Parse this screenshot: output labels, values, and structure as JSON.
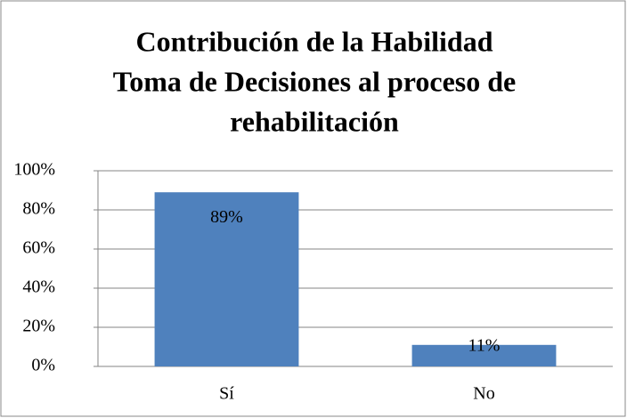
{
  "chart_data": {
    "type": "bar",
    "title": [
      "Contribución de la Habilidad",
      "Toma de Decisiones al proceso de",
      "rehabilitación"
    ],
    "categories": [
      "Sí",
      "No"
    ],
    "values": [
      89,
      11
    ],
    "value_labels": [
      "89%",
      "11%"
    ],
    "color": "#4f81bd",
    "ylim": [
      0,
      100
    ],
    "yticks": [
      {
        "value": 0,
        "label": "0%"
      },
      {
        "value": 20,
        "label": "20%"
      },
      {
        "value": 40,
        "label": "40%"
      },
      {
        "value": 60,
        "label": "60%"
      },
      {
        "value": 80,
        "label": "80%"
      },
      {
        "value": 100,
        "label": "100%"
      }
    ],
    "grid": true
  }
}
